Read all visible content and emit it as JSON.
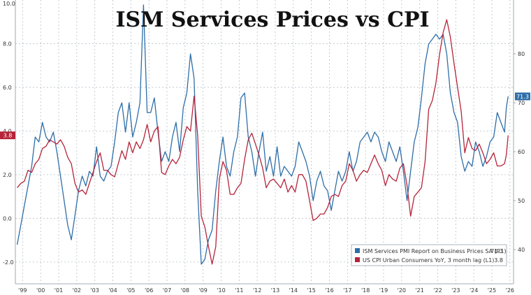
{
  "chart_data": {
    "type": "line",
    "title": "ISM Services Prices vs CPI",
    "x_tick_labels": [
      "'99",
      "'00",
      "'01",
      "'02",
      "'03",
      "'04",
      "'05",
      "'06",
      "'07",
      "'08",
      "'09",
      "'10",
      "'11",
      "'12",
      "'13",
      "'14",
      "'15",
      "'16",
      "'17",
      "'18",
      "'19",
      "'20",
      "'21",
      "'22",
      "'23",
      "'24",
      "'25",
      "'26"
    ],
    "x_tick_years": [
      1999,
      2000,
      2001,
      2002,
      2003,
      2004,
      2005,
      2006,
      2007,
      2008,
      2009,
      2010,
      2011,
      2012,
      2013,
      2014,
      2015,
      2016,
      2017,
      2018,
      2019,
      2020,
      2021,
      2022,
      2023,
      2024,
      2025,
      2026
    ],
    "xlim": [
      1998.6,
      2026.2
    ],
    "left_axis": {
      "ylim": [
        -3.0,
        10.0
      ],
      "ticks": [
        -2.0,
        0.0,
        2.0,
        4.0,
        6.0,
        8.0
      ],
      "top_label": "10.0"
    },
    "right_axis": {
      "ylim": [
        33,
        91
      ],
      "ticks": [
        40,
        50,
        60,
        70,
        80
      ]
    },
    "grid": true,
    "legend_position": "bottom-right",
    "colors": {
      "ism": "#2e6ea8",
      "cpi": "#b5243a"
    },
    "series": [
      {
        "name": "ISM Services PMI Report on Business Prices SA (R1)",
        "axis": "right",
        "last_value": "71.3",
        "points": [
          [
            1998.7,
            41
          ],
          [
            1998.9,
            45
          ],
          [
            1999.1,
            49
          ],
          [
            1999.3,
            53
          ],
          [
            1999.5,
            57
          ],
          [
            1999.7,
            63
          ],
          [
            1999.9,
            62
          ],
          [
            2000.1,
            66
          ],
          [
            2000.3,
            63
          ],
          [
            2000.5,
            62
          ],
          [
            2000.7,
            64
          ],
          [
            2000.9,
            60
          ],
          [
            2001.1,
            55
          ],
          [
            2001.3,
            50
          ],
          [
            2001.5,
            45
          ],
          [
            2001.7,
            42
          ],
          [
            2001.9,
            47
          ],
          [
            2002.1,
            52
          ],
          [
            2002.3,
            55
          ],
          [
            2002.5,
            53
          ],
          [
            2002.7,
            56
          ],
          [
            2002.9,
            55
          ],
          [
            2003.1,
            61
          ],
          [
            2003.3,
            55
          ],
          [
            2003.5,
            54
          ],
          [
            2003.7,
            56
          ],
          [
            2003.9,
            57
          ],
          [
            2004.1,
            62
          ],
          [
            2004.3,
            68
          ],
          [
            2004.5,
            70
          ],
          [
            2004.7,
            64
          ],
          [
            2004.9,
            70
          ],
          [
            2005.1,
            63
          ],
          [
            2005.3,
            66
          ],
          [
            2005.5,
            70
          ],
          [
            2005.7,
            90
          ],
          [
            2005.9,
            68
          ],
          [
            2006.1,
            68
          ],
          [
            2006.3,
            71
          ],
          [
            2006.5,
            64
          ],
          [
            2006.7,
            58
          ],
          [
            2006.9,
            60
          ],
          [
            2007.1,
            58
          ],
          [
            2007.3,
            63
          ],
          [
            2007.5,
            66
          ],
          [
            2007.7,
            60
          ],
          [
            2007.9,
            69
          ],
          [
            2008.1,
            72
          ],
          [
            2008.3,
            80
          ],
          [
            2008.5,
            75
          ],
          [
            2008.7,
            52
          ],
          [
            2008.9,
            37
          ],
          [
            2009.1,
            38
          ],
          [
            2009.3,
            42
          ],
          [
            2009.5,
            44
          ],
          [
            2009.7,
            52
          ],
          [
            2009.9,
            58
          ],
          [
            2010.1,
            63
          ],
          [
            2010.3,
            57
          ],
          [
            2010.5,
            55
          ],
          [
            2010.7,
            60
          ],
          [
            2010.9,
            63
          ],
          [
            2011.1,
            71
          ],
          [
            2011.3,
            72
          ],
          [
            2011.5,
            63
          ],
          [
            2011.7,
            60
          ],
          [
            2011.9,
            55
          ],
          [
            2012.1,
            60
          ],
          [
            2012.3,
            64
          ],
          [
            2012.5,
            56
          ],
          [
            2012.7,
            59
          ],
          [
            2012.9,
            55
          ],
          [
            2013.1,
            61
          ],
          [
            2013.3,
            55
          ],
          [
            2013.5,
            57
          ],
          [
            2013.7,
            56
          ],
          [
            2013.9,
            55
          ],
          [
            2014.1,
            57
          ],
          [
            2014.3,
            62
          ],
          [
            2014.5,
            60
          ],
          [
            2014.7,
            58
          ],
          [
            2014.9,
            55
          ],
          [
            2015.1,
            50
          ],
          [
            2015.3,
            54
          ],
          [
            2015.5,
            56
          ],
          [
            2015.7,
            53
          ],
          [
            2015.9,
            52
          ],
          [
            2016.1,
            48
          ],
          [
            2016.3,
            52
          ],
          [
            2016.5,
            56
          ],
          [
            2016.7,
            54
          ],
          [
            2016.9,
            56
          ],
          [
            2017.1,
            60
          ],
          [
            2017.3,
            56
          ],
          [
            2017.5,
            58
          ],
          [
            2017.7,
            62
          ],
          [
            2017.9,
            63
          ],
          [
            2018.1,
            64
          ],
          [
            2018.3,
            62
          ],
          [
            2018.5,
            64
          ],
          [
            2018.7,
            63
          ],
          [
            2018.9,
            60
          ],
          [
            2019.1,
            58
          ],
          [
            2019.3,
            62
          ],
          [
            2019.5,
            60
          ],
          [
            2019.7,
            58
          ],
          [
            2019.9,
            61
          ],
          [
            2020.1,
            56
          ],
          [
            2020.3,
            50
          ],
          [
            2020.5,
            56
          ],
          [
            2020.7,
            62
          ],
          [
            2020.9,
            65
          ],
          [
            2021.1,
            71
          ],
          [
            2021.3,
            78
          ],
          [
            2021.5,
            82
          ],
          [
            2021.7,
            83
          ],
          [
            2021.9,
            84
          ],
          [
            2022.1,
            83
          ],
          [
            2022.3,
            84
          ],
          [
            2022.5,
            80
          ],
          [
            2022.7,
            72
          ],
          [
            2022.9,
            68
          ],
          [
            2023.1,
            66
          ],
          [
            2023.3,
            59
          ],
          [
            2023.5,
            56
          ],
          [
            2023.7,
            58
          ],
          [
            2023.9,
            57
          ],
          [
            2024.1,
            62
          ],
          [
            2024.3,
            60
          ],
          [
            2024.5,
            57
          ],
          [
            2024.7,
            59
          ],
          [
            2024.9,
            62
          ],
          [
            2025.1,
            63
          ],
          [
            2025.3,
            68
          ],
          [
            2025.5,
            66
          ],
          [
            2025.7,
            64
          ],
          [
            2025.8,
            69
          ],
          [
            2025.9,
            71.3
          ]
        ]
      },
      {
        "name": "US CPI Urban Consumers YoY, 3 month lag (L1)",
        "axis": "left",
        "last_value": "3.8",
        "points": [
          [
            1998.7,
            1.4
          ],
          [
            1998.9,
            1.6
          ],
          [
            1999.1,
            1.7
          ],
          [
            1999.3,
            2.2
          ],
          [
            1999.5,
            2.1
          ],
          [
            1999.7,
            2.5
          ],
          [
            1999.9,
            2.7
          ],
          [
            2000.1,
            3.2
          ],
          [
            2000.3,
            3.3
          ],
          [
            2000.5,
            3.6
          ],
          [
            2000.7,
            3.5
          ],
          [
            2000.9,
            3.4
          ],
          [
            2001.1,
            3.6
          ],
          [
            2001.3,
            3.3
          ],
          [
            2001.5,
            2.8
          ],
          [
            2001.7,
            2.5
          ],
          [
            2001.9,
            1.6
          ],
          [
            2002.1,
            1.2
          ],
          [
            2002.3,
            1.3
          ],
          [
            2002.5,
            1.1
          ],
          [
            2002.7,
            1.6
          ],
          [
            2002.9,
            2.1
          ],
          [
            2003.1,
            2.6
          ],
          [
            2003.3,
            3.0
          ],
          [
            2003.5,
            2.2
          ],
          [
            2003.7,
            2.2
          ],
          [
            2003.9,
            2.0
          ],
          [
            2004.1,
            1.9
          ],
          [
            2004.3,
            2.5
          ],
          [
            2004.5,
            3.1
          ],
          [
            2004.7,
            2.7
          ],
          [
            2004.9,
            3.5
          ],
          [
            2005.1,
            3.0
          ],
          [
            2005.3,
            3.5
          ],
          [
            2005.5,
            3.2
          ],
          [
            2005.7,
            3.6
          ],
          [
            2005.9,
            4.3
          ],
          [
            2006.1,
            3.5
          ],
          [
            2006.3,
            4.0
          ],
          [
            2006.5,
            4.2
          ],
          [
            2006.7,
            2.1
          ],
          [
            2006.9,
            2.0
          ],
          [
            2007.1,
            2.4
          ],
          [
            2007.3,
            2.7
          ],
          [
            2007.5,
            2.5
          ],
          [
            2007.7,
            2.8
          ],
          [
            2007.9,
            3.6
          ],
          [
            2008.1,
            4.2
          ],
          [
            2008.3,
            4.0
          ],
          [
            2008.5,
            5.6
          ],
          [
            2008.7,
            3.8
          ],
          [
            2008.9,
            0.1
          ],
          [
            2009.1,
            -0.4
          ],
          [
            2009.3,
            -1.3
          ],
          [
            2009.5,
            -2.1
          ],
          [
            2009.7,
            -1.3
          ],
          [
            2009.9,
            1.8
          ],
          [
            2010.1,
            2.6
          ],
          [
            2010.3,
            2.2
          ],
          [
            2010.5,
            1.1
          ],
          [
            2010.7,
            1.1
          ],
          [
            2010.9,
            1.4
          ],
          [
            2011.1,
            1.6
          ],
          [
            2011.3,
            2.7
          ],
          [
            2011.5,
            3.6
          ],
          [
            2011.7,
            3.9
          ],
          [
            2011.9,
            3.4
          ],
          [
            2012.1,
            2.9
          ],
          [
            2012.3,
            2.3
          ],
          [
            2012.5,
            1.4
          ],
          [
            2012.7,
            1.7
          ],
          [
            2012.9,
            1.8
          ],
          [
            2013.1,
            1.6
          ],
          [
            2013.3,
            1.4
          ],
          [
            2013.5,
            1.8
          ],
          [
            2013.7,
            1.2
          ],
          [
            2013.9,
            1.5
          ],
          [
            2014.1,
            1.2
          ],
          [
            2014.3,
            2.0
          ],
          [
            2014.5,
            2.0
          ],
          [
            2014.7,
            1.7
          ],
          [
            2014.9,
            0.8
          ],
          [
            2015.1,
            -0.1
          ],
          [
            2015.3,
            0.0
          ],
          [
            2015.5,
            0.2
          ],
          [
            2015.7,
            0.2
          ],
          [
            2015.9,
            0.5
          ],
          [
            2016.1,
            1.0
          ],
          [
            2016.3,
            1.1
          ],
          [
            2016.5,
            1.0
          ],
          [
            2016.7,
            1.5
          ],
          [
            2016.9,
            1.7
          ],
          [
            2017.1,
            2.5
          ],
          [
            2017.3,
            2.2
          ],
          [
            2017.5,
            1.7
          ],
          [
            2017.7,
            2.0
          ],
          [
            2017.9,
            2.2
          ],
          [
            2018.1,
            2.1
          ],
          [
            2018.3,
            2.5
          ],
          [
            2018.5,
            2.9
          ],
          [
            2018.7,
            2.5
          ],
          [
            2018.9,
            2.2
          ],
          [
            2019.1,
            1.5
          ],
          [
            2019.3,
            2.0
          ],
          [
            2019.5,
            1.8
          ],
          [
            2019.7,
            1.7
          ],
          [
            2019.9,
            2.3
          ],
          [
            2020.1,
            2.5
          ],
          [
            2020.3,
            1.5
          ],
          [
            2020.5,
            0.1
          ],
          [
            2020.7,
            1.0
          ],
          [
            2020.9,
            1.2
          ],
          [
            2021.1,
            1.4
          ],
          [
            2021.3,
            2.6
          ],
          [
            2021.5,
            5.0
          ],
          [
            2021.7,
            5.4
          ],
          [
            2021.9,
            6.2
          ],
          [
            2022.1,
            7.5
          ],
          [
            2022.3,
            8.5
          ],
          [
            2022.5,
            9.1
          ],
          [
            2022.7,
            8.3
          ],
          [
            2022.9,
            7.1
          ],
          [
            2023.1,
            6.0
          ],
          [
            2023.3,
            4.9
          ],
          [
            2023.5,
            3.0
          ],
          [
            2023.7,
            3.7
          ],
          [
            2023.9,
            3.2
          ],
          [
            2024.1,
            3.1
          ],
          [
            2024.3,
            3.4
          ],
          [
            2024.5,
            3.0
          ],
          [
            2024.7,
            2.5
          ],
          [
            2024.9,
            2.7
          ],
          [
            2025.1,
            3.0
          ],
          [
            2025.3,
            2.4
          ],
          [
            2025.5,
            2.4
          ],
          [
            2025.7,
            2.5
          ],
          [
            2025.8,
            2.9
          ],
          [
            2025.9,
            3.8
          ]
        ]
      }
    ]
  }
}
